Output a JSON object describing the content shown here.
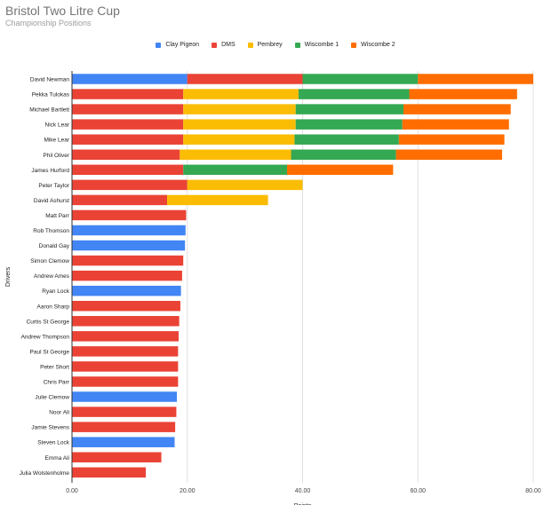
{
  "chart_data": {
    "type": "bar",
    "orientation": "horizontal",
    "stacked": true,
    "title": "Bristol Two Litre Cup",
    "subtitle": "Championship Positions",
    "xlabel": "Points",
    "ylabel": "Drivers",
    "xlim": [
      0,
      80
    ],
    "x_ticks": [
      "0.00",
      "20.00",
      "40.00",
      "60.00",
      "80.00"
    ],
    "x_tick_values": [
      0,
      20,
      40,
      60,
      80
    ],
    "grid": true,
    "legend_position": "top",
    "categories": [
      "David Newman",
      "Pekka Tulokas",
      "Michael Bartlett",
      "Nick Lear",
      "Mike Lear",
      "Phil Oliver",
      "James Hurford",
      "Peter Taylor",
      "David Ashurst",
      "Matt Parr",
      "Rob Thomson",
      "Donald Gay",
      "Simon Clemow",
      "Andrew Ames",
      "Ryan Lock",
      "Aaron Sharp",
      "Curtis St George",
      "Andrew Thompson",
      "Paul St George",
      "Peter Short",
      "Chris Parr",
      "Julie Clemow",
      "Noor Ali",
      "Jamie Stevens",
      "Steven Lock",
      "Emma Ali",
      "Julia Wolstenholme"
    ],
    "series": [
      {
        "name": "Clay Pigeon",
        "color": "#4285f4",
        "values": [
          20,
          0,
          0,
          0,
          0,
          0,
          0,
          0,
          0,
          0,
          19.7,
          19.6,
          0,
          0,
          18.9,
          0,
          0,
          0,
          0,
          0,
          0,
          18.2,
          0,
          0,
          17.8,
          0,
          0
        ]
      },
      {
        "name": "DMS",
        "color": "#ea4335",
        "values": [
          20,
          19.3,
          19.3,
          19.3,
          19.3,
          18.7,
          19.3,
          20,
          16.5,
          19.8,
          0,
          0,
          19.3,
          19.1,
          0,
          18.8,
          18.6,
          18.5,
          18.4,
          18.4,
          18.4,
          0,
          18.1,
          17.9,
          0,
          15.5,
          12.8
        ]
      },
      {
        "name": "Pembrey",
        "color": "#fbbc04",
        "values": [
          0,
          20,
          19.5,
          19.5,
          19.3,
          19.3,
          0,
          20,
          17.5,
          0,
          0,
          0,
          0,
          0,
          0,
          0,
          0,
          0,
          0,
          0,
          0,
          0,
          0,
          0,
          0,
          0,
          0
        ]
      },
      {
        "name": "Wiscombe 1",
        "color": "#34a853",
        "values": [
          20,
          19.2,
          18.7,
          18.5,
          18.1,
          18.2,
          18,
          0,
          0,
          0,
          0,
          0,
          0,
          0,
          0,
          0,
          0,
          0,
          0,
          0,
          0,
          0,
          0,
          0,
          0,
          0,
          0
        ]
      },
      {
        "name": "Wiscombe 2",
        "color": "#ff6d01",
        "values": [
          20,
          18.7,
          18.6,
          18.5,
          18.3,
          18.4,
          18.4,
          0,
          0,
          0,
          0,
          0,
          0,
          0,
          0,
          0,
          0,
          0,
          0,
          0,
          0,
          0,
          0,
          0,
          0,
          0,
          0
        ]
      }
    ]
  }
}
